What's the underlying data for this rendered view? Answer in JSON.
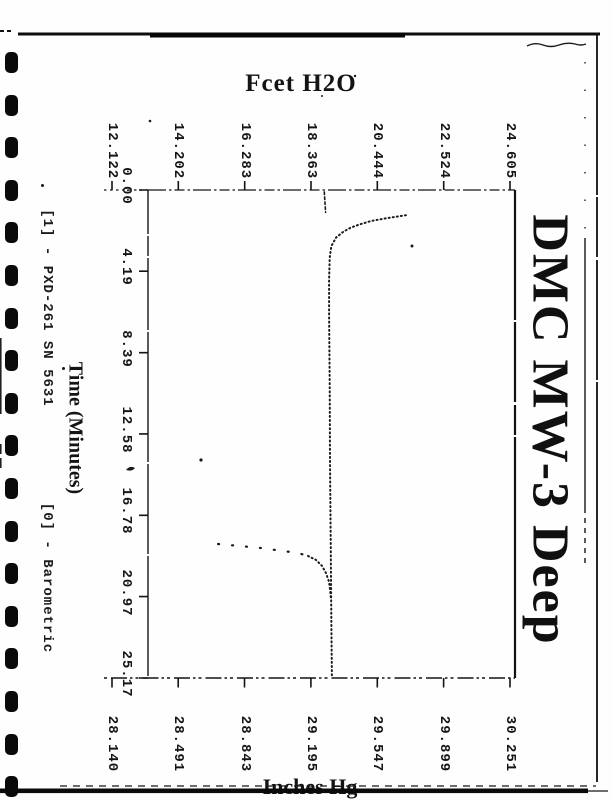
{
  "page": {
    "chart_axis_title_top": "Fcet H2O",
    "main_title": "DMC MW-3 Deep",
    "time_axis_title": "Time (Minutes)",
    "bottom_axis_title": "Inches Hg",
    "legend": [
      {
        "label": "[1] - PXD-261 SN 5631"
      },
      {
        "label": "[0] - Barometric"
      }
    ]
  },
  "chart_data": {
    "type": "line",
    "title": "DMC MW-3 Deep",
    "layout_hint": "scanned page rotated 90 degrees; chart reads with page turned counter-clockwise; dotted traces",
    "axes": {
      "feet_h2o": {
        "label": "Fcet H2O",
        "tick_labels": [
          "12.122",
          "14.202",
          "16.283",
          "18.363",
          "20.444",
          "22.524",
          "24.605"
        ],
        "range": [
          12.122,
          24.605
        ]
      },
      "time_minutes": {
        "label": "Time (Minutes)",
        "tick_labels": [
          "0.00",
          "4.19",
          "8.39",
          "12.58",
          "16.78",
          "20.97",
          "25.17"
        ],
        "range": [
          0,
          25.17
        ]
      },
      "inches_hg": {
        "label": "Inches Hg",
        "tick_labels": [
          "28.140",
          "28.491",
          "28.843",
          "29.195",
          "29.547",
          "29.899",
          "30.251"
        ],
        "range": [
          28.14,
          30.251
        ]
      }
    },
    "series": [
      {
        "name": "[1] - PXD-261 SN 5631",
        "units": "Feet H2O (left-axis estimate, time in minutes)",
        "segments": [
          {
            "style": "dash",
            "points": [
              [
                0.1,
                18.78
              ],
              [
                1.15,
                18.82
              ]
            ]
          },
          {
            "style": "dense",
            "points": [
              [
                1.3,
                21.34
              ],
              [
                1.45,
                20.75
              ],
              [
                1.6,
                20.25
              ],
              [
                1.78,
                19.88
              ],
              [
                1.95,
                19.6
              ],
              [
                2.15,
                19.38
              ],
              [
                2.45,
                19.15
              ],
              [
                2.9,
                19.0
              ],
              [
                3.5,
                18.95
              ],
              [
                4.6,
                18.93
              ],
              [
                6.5,
                18.93
              ],
              [
                10.0,
                18.95
              ],
              [
                14.0,
                18.96
              ],
              [
                18.0,
                18.98
              ],
              [
                22.0,
                19.0
              ],
              [
                25.12,
                19.02
              ]
            ]
          }
        ]
      },
      {
        "name": "[0] - Barometric",
        "units": "plotted position estimate on Feet H2O scale, time in minutes",
        "segments": [
          {
            "style": "sparse",
            "points": [
              [
                18.26,
                15.45
              ],
              [
                18.46,
                16.76
              ],
              [
                18.62,
                17.48
              ],
              [
                18.72,
                17.95
              ],
              [
                18.88,
                18.27
              ]
            ]
          },
          {
            "style": "dense",
            "points": [
              [
                18.88,
                18.27
              ],
              [
                19.08,
                18.52
              ],
              [
                19.39,
                18.71
              ],
              [
                19.75,
                18.83
              ],
              [
                20.22,
                18.93
              ],
              [
                20.73,
                18.97
              ],
              [
                21.15,
                18.99
              ]
            ]
          }
        ]
      }
    ]
  }
}
